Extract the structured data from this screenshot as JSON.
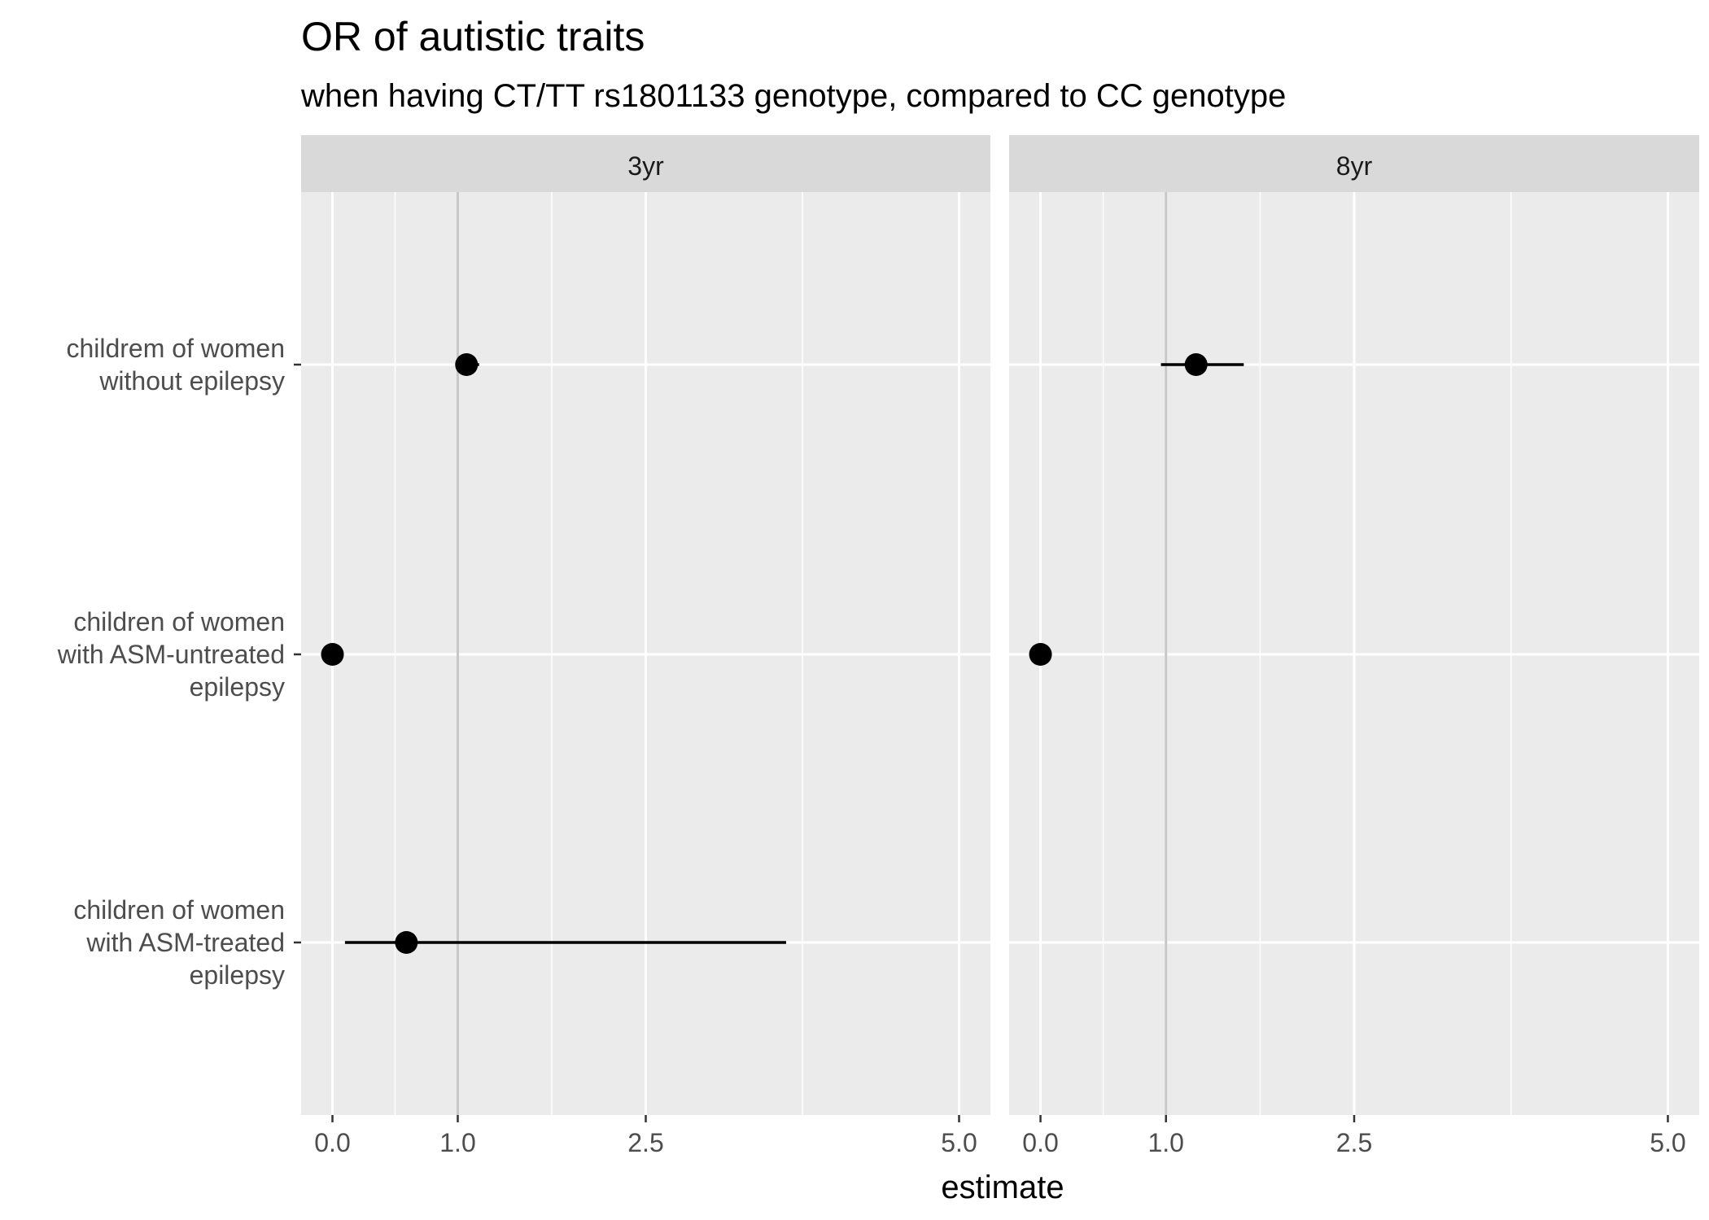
{
  "chart_data": {
    "type": "scatter",
    "title": "OR of autistic traits",
    "subtitle": "when having CT/TT rs1801133 genotype, compared to CC genotype",
    "xlabel": "estimate",
    "ylabel": "",
    "xlim": [
      -0.25,
      5.25
    ],
    "x_ticks": [
      "0.0",
      "1.0",
      "2.5",
      "5.0"
    ],
    "x_tick_values": [
      0.0,
      1.0,
      2.5,
      5.0
    ],
    "x_minor_gridlines": [
      0.5,
      1.75,
      3.75
    ],
    "reference_line": 1.0,
    "categories": [
      "childrem of women without epilepsy",
      "children of women with ASM-untreated epilepsy",
      "children of women with ASM-treated epilepsy"
    ],
    "category_lines": [
      [
        "childrem of women",
        "without epilepsy"
      ],
      [
        "children of women",
        "with ASM-untreated",
        "epilepsy"
      ],
      [
        "children of women",
        "with ASM-treated",
        "epilepsy"
      ]
    ],
    "facets": [
      {
        "label": "3yr",
        "points": [
          {
            "estimate": 1.07,
            "lower": 1.0,
            "upper": 1.17
          },
          {
            "estimate": 0.0,
            "lower": null,
            "upper": null
          },
          {
            "estimate": 0.59,
            "lower": 0.1,
            "upper": 3.62
          }
        ]
      },
      {
        "label": "8yr",
        "points": [
          {
            "estimate": 1.24,
            "lower": 0.96,
            "upper": 1.62
          },
          {
            "estimate": 0.0,
            "lower": null,
            "upper": null
          },
          {
            "estimate": null,
            "lower": null,
            "upper": null
          }
        ]
      }
    ],
    "grid": true,
    "legend": "none"
  }
}
